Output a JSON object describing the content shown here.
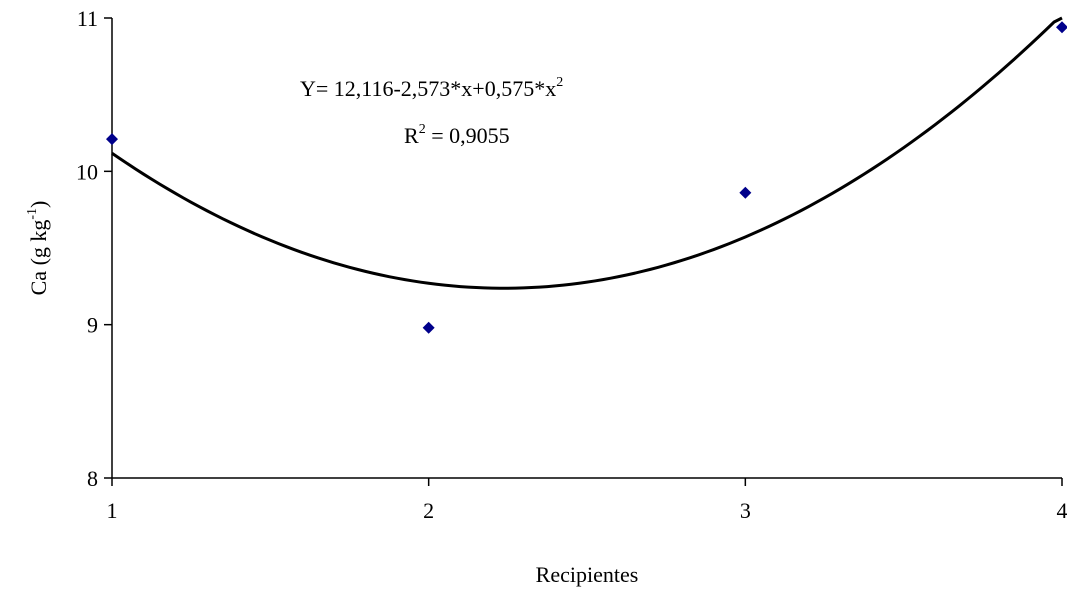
{
  "chart_data": {
    "type": "scatter",
    "xlabel": "Recipientes",
    "ylabel": {
      "base": "Ca (g kg",
      "superscript": "-1",
      "close": ")"
    },
    "xlim": [
      1,
      4
    ],
    "ylim": [
      8,
      11
    ],
    "xticks": [
      "1",
      "2",
      "3",
      "4"
    ],
    "yticks": [
      "8",
      "9",
      "10",
      "11"
    ],
    "grid": false,
    "points": {
      "x": [
        1,
        2,
        3,
        4
      ],
      "y": [
        10.21,
        8.98,
        9.86,
        10.94
      ],
      "color": "#00008B"
    },
    "trendline": {
      "type": "polynomial",
      "coefficients": {
        "a0": 12.116,
        "a1": -2.573,
        "a2": 0.575
      },
      "color": "#000000"
    },
    "annotations": {
      "equation_main": "Y= 12,116-2,573*x+0,575*x",
      "equation_sup": "2",
      "r2_prefix": "R",
      "r2_sup": "2",
      "r2_value": " = 0,9055"
    }
  }
}
